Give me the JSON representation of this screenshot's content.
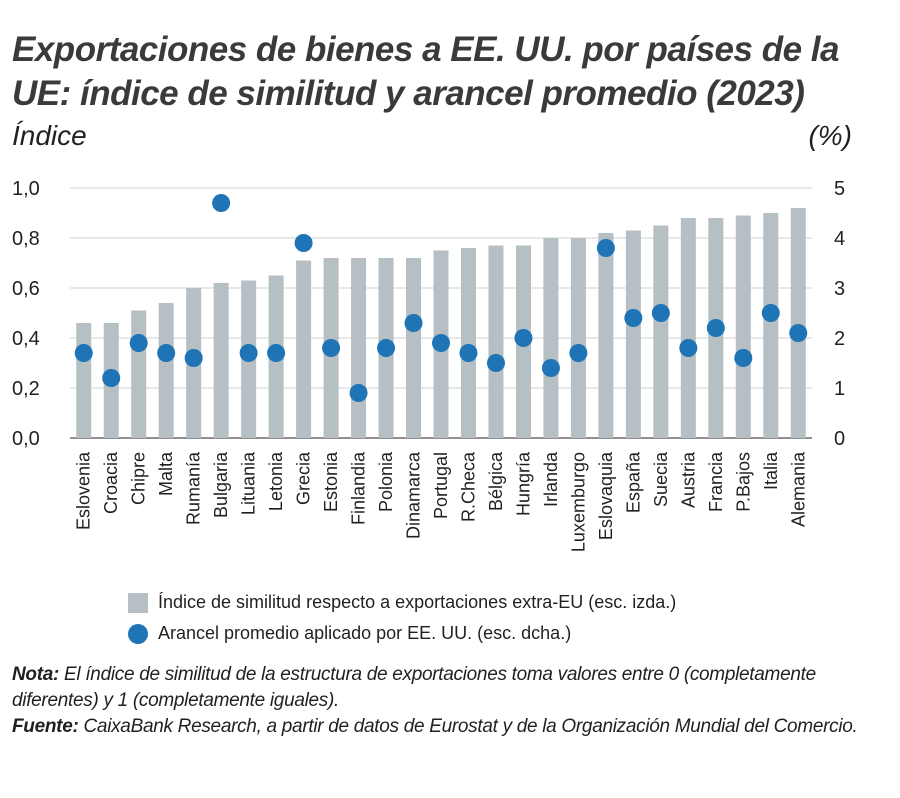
{
  "title": "Exportaciones de bienes a EE. UU. por países de la UE: índice de similitud y arancel promedio (2023)",
  "left_unit": "Índice",
  "right_unit": "(%)",
  "legend": {
    "bar": "Índice de similitud respecto a exportaciones extra-EU (esc. izda.)",
    "dot": "Arancel promedio aplicado por EE. UU. (esc. dcha.)"
  },
  "notes": {
    "nota_label": "Nota:",
    "nota_text": "El índice de similitud de la estructura de exportaciones toma valores entre 0 (completamente diferentes) y 1 (completamente iguales).",
    "fuente_label": "Fuente:",
    "fuente_text": "CaixaBank Research, a partir de datos de Eurostat y de la Organización Mundial del Comercio."
  },
  "colors": {
    "bar": "#b5bfc4",
    "dot": "#1f74b5",
    "grid": "#d0d0d0"
  },
  "chart_data": {
    "type": "bar",
    "categories": [
      "Eslovenia",
      "Croacia",
      "Chipre",
      "Malta",
      "Rumanía",
      "Bulgaria",
      "Lituania",
      "Letonia",
      "Grecia",
      "Estonia",
      "Finlandia",
      "Polonia",
      "Dinamarca",
      "Portugal",
      "R.Checa",
      "Bélgica",
      "Hungría",
      "Irlanda",
      "Luxemburgo",
      "Eslovaquia",
      "España",
      "Suecia",
      "Austria",
      "Francia",
      "P.Bajos",
      "Italia",
      "Alemania"
    ],
    "series": [
      {
        "name": "Índice de similitud respecto a exportaciones extra-EU (esc. izda.)",
        "type": "bar",
        "axis": "left",
        "values": [
          0.46,
          0.46,
          0.51,
          0.54,
          0.6,
          0.62,
          0.63,
          0.65,
          0.71,
          0.72,
          0.72,
          0.72,
          0.72,
          0.75,
          0.76,
          0.77,
          0.77,
          0.8,
          0.8,
          0.82,
          0.83,
          0.85,
          0.88,
          0.88,
          0.89,
          0.9,
          0.92
        ]
      },
      {
        "name": "Arancel promedio aplicado por EE. UU. (esc. dcha.)",
        "type": "scatter",
        "axis": "right",
        "values": [
          1.7,
          1.2,
          1.9,
          1.7,
          1.6,
          4.7,
          1.7,
          1.7,
          3.9,
          1.8,
          0.9,
          1.8,
          2.3,
          1.9,
          1.7,
          1.5,
          2.0,
          1.4,
          1.7,
          3.8,
          2.4,
          2.5,
          1.8,
          2.2,
          1.6,
          2.5,
          2.1
        ]
      }
    ],
    "y_left": {
      "range": [
        0,
        1.0
      ],
      "ticks": [
        "0,0",
        "0,2",
        "0,4",
        "0,6",
        "0,8",
        "1,0"
      ]
    },
    "y_right": {
      "range": [
        0,
        5
      ],
      "ticks": [
        "0",
        "1",
        "2",
        "3",
        "4",
        "5"
      ]
    },
    "grid": true,
    "legend_position": "bottom"
  }
}
